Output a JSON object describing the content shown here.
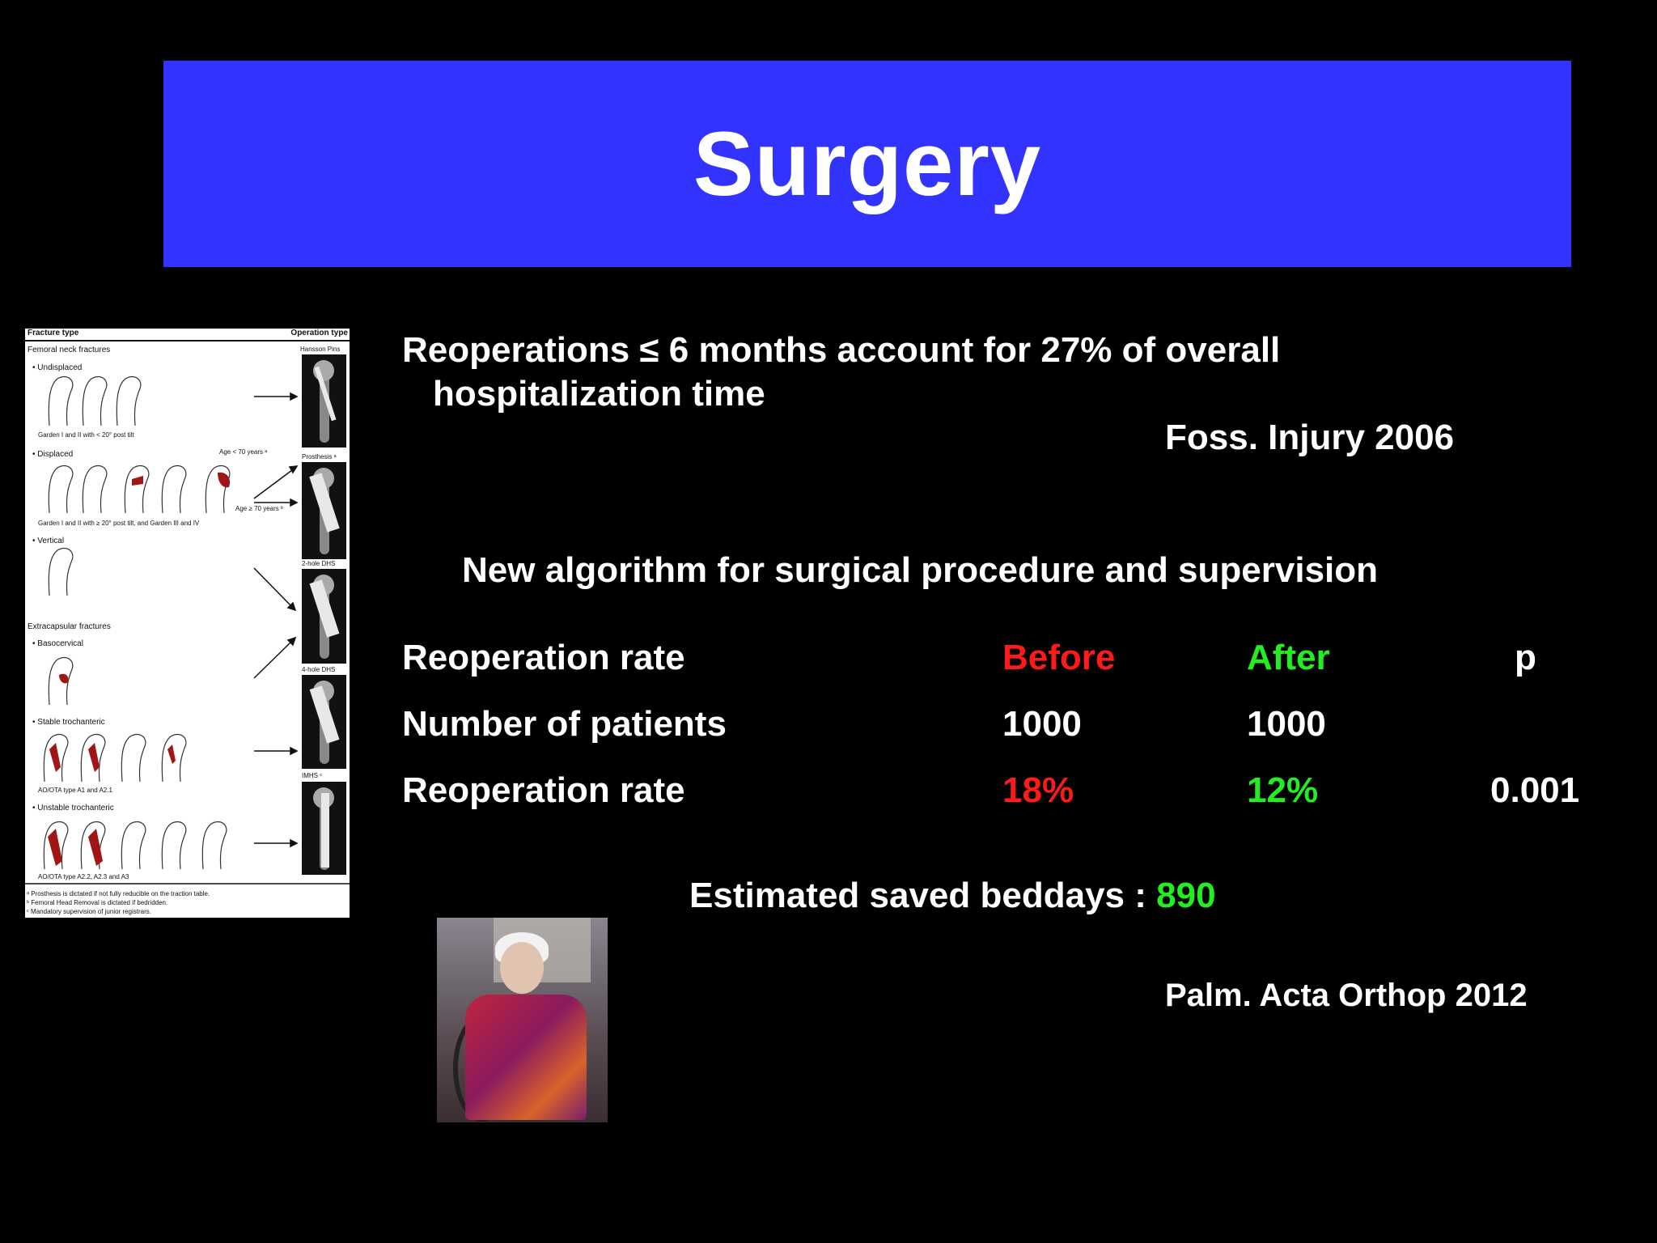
{
  "title": "Surgery",
  "citation1": {
    "line1": "Reoperations ≤ 6 months account for 27% of overall",
    "line2": "hospitalization time",
    "source": "Foss. Injury 2006"
  },
  "algorithm_heading": "New algorithm for surgical procedure and supervision",
  "table": {
    "header": {
      "label": "Reoperation rate",
      "before": "Before",
      "after": "After",
      "p": "p"
    },
    "rows": [
      {
        "label": "Number of patients",
        "before": "1000",
        "after": "1000",
        "p": ""
      },
      {
        "label": "Reoperation rate",
        "before": "18%",
        "after": "12%",
        "p": "0.001"
      }
    ]
  },
  "saved": {
    "label": "Estimated saved beddays :",
    "value": "890"
  },
  "citation2": "Palm. Acta Orthop 2012",
  "colors": {
    "title_bg": "#3333ff",
    "before": "#ff1a1a",
    "after": "#22ee22",
    "background": "#000000"
  },
  "figure": {
    "header_left": "Fracture type",
    "header_right": "Operation type",
    "section1": "Femoral neck fractures",
    "undisplaced": "• Undisplaced",
    "undisplaced_note": "Garden I and II with < 20° post tilt",
    "displaced": "• Displaced",
    "age_under": "Age < 70 years ᵃ",
    "age_over": "Age ≥ 70 years ᵇ",
    "displaced_note": "Garden I and II with ≥ 20° post tilt, and Garden III and IV",
    "vertical": "• Vertical",
    "section2": "Extracapsular fractures",
    "basocervical": "• Basocervical",
    "stable": "• Stable trochanteric",
    "stable_note": "AO/OTA type A1 and A2.1",
    "unstable": "• Unstable trochanteric",
    "unstable_note": "AO/OTA type A2.2, A2.3 and A3",
    "op1": "Hansson Pins",
    "op2": "Prosthesis ᵃ",
    "op3": "2-hole DHS",
    "op4": "4-hole DHS",
    "op5": "IMHS ᶜ",
    "foot1": "ᵃ Prosthesis is dictated if not fully reducible on the traction table.",
    "foot2": "ᵇ Femoral Head Removal is dictated if bedridden.",
    "foot3": "ᶜ Mandatory supervision of junior registrars."
  }
}
